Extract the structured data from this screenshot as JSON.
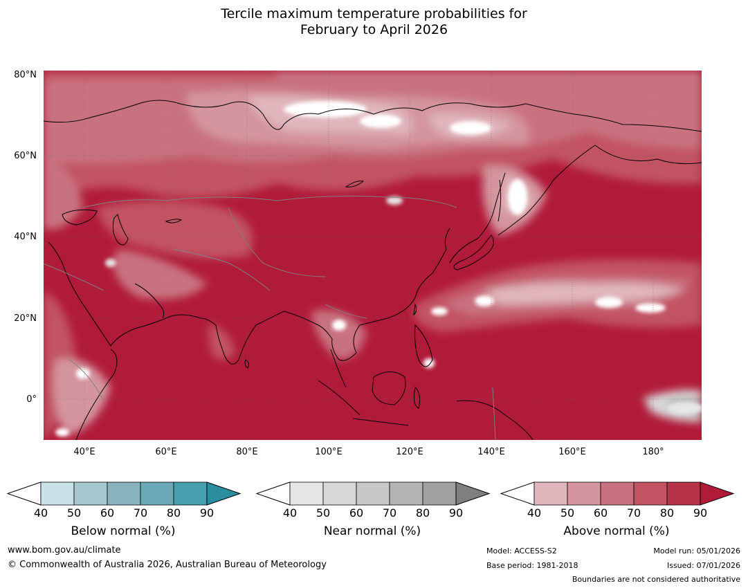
{
  "title": {
    "line1": "Tercile maximum temperature probabilities for",
    "line2": "February to April 2026"
  },
  "map": {
    "lat_labels": [
      "80°N",
      "60°N",
      "40°N",
      "20°N",
      "0°"
    ],
    "lon_labels": [
      "40°E",
      "60°E",
      "80°E",
      "100°E",
      "120°E",
      "140°E",
      "160°E",
      "180°"
    ],
    "extent": {
      "lon": [
        30,
        191
      ],
      "lat": [
        -10,
        81
      ]
    }
  },
  "colorbars": [
    {
      "label": "Below normal (%)",
      "ticks": [
        "40",
        "50",
        "60",
        "70",
        "80",
        "90"
      ],
      "colors": [
        "#ffffff",
        "#c9e2e8",
        "#a5c8ce",
        "#87b4bf",
        "#6aa8b6",
        "#469fae",
        "#2a8ea0"
      ]
    },
    {
      "label": "Near normal (%)",
      "ticks": [
        "40",
        "50",
        "60",
        "70",
        "80",
        "90"
      ],
      "colors": [
        "#ffffff",
        "#e6e6e6",
        "#d7d7d7",
        "#c8c8c8",
        "#b4b4b4",
        "#a0a0a0",
        "#7f7f7f"
      ]
    },
    {
      "label": "Above normal (%)",
      "ticks": [
        "40",
        "50",
        "60",
        "70",
        "80",
        "90"
      ],
      "colors": [
        "#ffffff",
        "#e0b6bc",
        "#d4959e",
        "#c9727f",
        "#c25363",
        "#b73348",
        "#b11b3a"
      ]
    }
  ],
  "footer": {
    "website": "www.bom.gov.au/climate",
    "copyright": "© Commonwealth of Australia 2026, Australian Bureau of Meteorology",
    "model": "Model: ACCESS-S2",
    "base_period": "Base period: 1981-2018",
    "model_run": "Model run: 05/01/2026",
    "issued": "Issued: 07/01/2026",
    "disclaimer": "Boundaries are not considered authoritative"
  }
}
